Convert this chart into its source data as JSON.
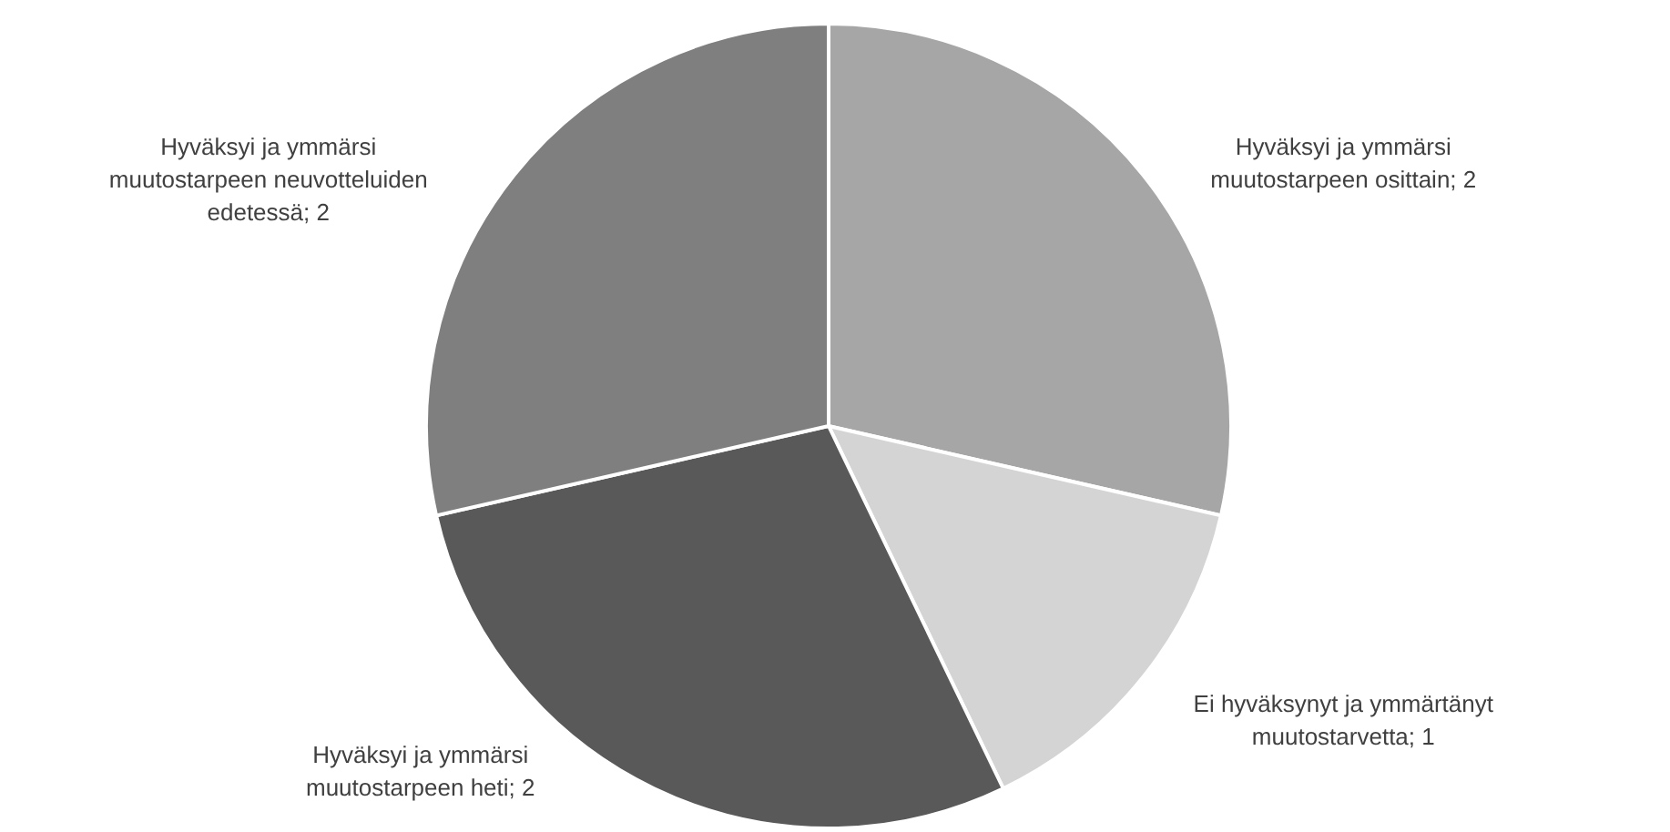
{
  "chart_data": {
    "type": "pie",
    "categories": [
      "Hyväksyi ja ymmärsi muutostarpeen osittain; 2",
      "Ei hyväksynyt ja ymmärtänyt muutostarvetta; 1",
      "Hyväksyi ja ymmärsi muutostarpeen heti; 2",
      "Hyväksyi ja ymmärsi muutostarpeen neuvotteluiden edetessä; 2"
    ],
    "values": [
      2,
      1,
      2,
      2
    ],
    "colors": [
      "#a6a6a6",
      "#d4d4d4",
      "#595959",
      "#7f7f7f"
    ]
  }
}
